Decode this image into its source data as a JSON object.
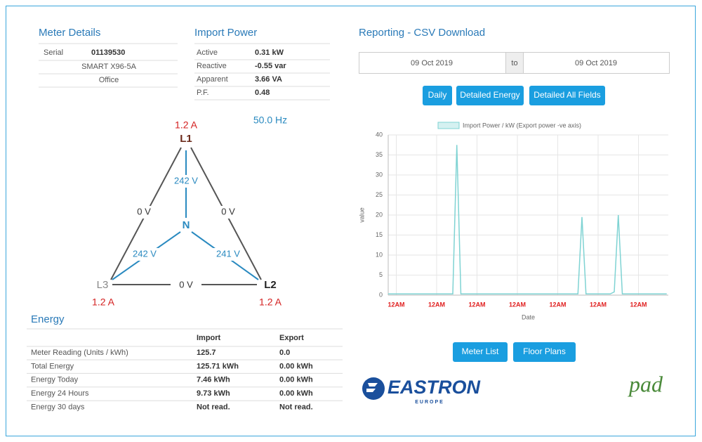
{
  "meter_details": {
    "title": "Meter Details",
    "serial_label": "Serial",
    "serial": "01139530",
    "model": "SMART X96-5A",
    "location": "Office"
  },
  "import_power": {
    "title": "Import Power",
    "rows": [
      [
        "Active",
        "0.31 kW"
      ],
      [
        "Reactive",
        "-0.55 var"
      ],
      [
        "Apparent",
        "3.66 VA"
      ],
      [
        "P.F.",
        "0.48"
      ]
    ]
  },
  "diagram": {
    "frequency": "50.0 Hz",
    "l1": "L1",
    "l2": "L2",
    "l3": "L3",
    "n": "N",
    "l1_current": "1.2 A",
    "l2_current": "1.2 A",
    "l3_current": "1.2 A",
    "n_l1": "242 V",
    "n_l2": "241 V",
    "n_l3": "242 V",
    "l1_l3": "0 V",
    "l1_l2": "0 V",
    "l2_l3": "0 V"
  },
  "energy": {
    "title": "Energy",
    "header": [
      "Import",
      "Export"
    ],
    "rows": [
      [
        "Meter Reading (Units / kWh)",
        "125.7",
        "0.0"
      ],
      [
        "Total Energy",
        "125.71 kWh",
        "0.00 kWh"
      ],
      [
        "Energy Today",
        "7.46 kWh",
        "0.00 kWh"
      ],
      [
        "Energy 24 Hours",
        "9.73 kWh",
        "0.00 kWh"
      ],
      [
        "Energy 30 days",
        "Not read.",
        "Not read."
      ]
    ]
  },
  "reporting": {
    "title": "Reporting - CSV Download",
    "from": "09 Oct 2019",
    "to_label": "to",
    "to": "09 Oct 2019",
    "buttons": [
      "Daily",
      "Detailed Energy",
      "Detailed All Fields"
    ]
  },
  "chart_data": {
    "type": "line",
    "x_label": "Date",
    "y_label": "value",
    "categories": [
      null,
      null,
      "12AM",
      null,
      null,
      null,
      null,
      null,
      null,
      null,
      null,
      null,
      "12AM",
      null,
      null,
      null,
      null,
      null,
      null,
      null,
      null,
      null,
      "12AM",
      null,
      null,
      null,
      null,
      null,
      null,
      null,
      null,
      null,
      "12AM",
      null,
      null,
      null,
      null,
      null,
      null,
      null,
      null,
      null,
      "12AM",
      null,
      null,
      null,
      null,
      null,
      null,
      null,
      null,
      null,
      "12AM",
      null,
      null,
      null,
      null,
      null,
      null,
      null,
      null,
      null,
      "12AM",
      null,
      null,
      null,
      null,
      null,
      null,
      null
    ],
    "series": [
      {
        "name": "Import Power / kW (Export power -ve axis)",
        "color": "#7fd3d3",
        "values": [
          0.3,
          0.3,
          0.3,
          0.3,
          0.3,
          0.3,
          0.3,
          0.3,
          0.3,
          0.3,
          0.3,
          0.3,
          0.3,
          0.3,
          0.3,
          0.3,
          0.3,
          37.5,
          0.3,
          0.3,
          0.3,
          0.3,
          0.3,
          0.3,
          0.3,
          0.3,
          0.3,
          0.3,
          0.3,
          0.3,
          0.3,
          0.3,
          0.3,
          0.3,
          0.3,
          0.3,
          0.3,
          0.3,
          0.3,
          0.3,
          0.3,
          0.3,
          0.3,
          0.3,
          0.3,
          0.3,
          0.3,
          0.3,
          19.5,
          0.3,
          0.3,
          0.3,
          0.3,
          0.3,
          0.3,
          0.3,
          0.8,
          20,
          0.3,
          0.3,
          0.3,
          0.3,
          0.3,
          0.3,
          0.3,
          0.3,
          0.3,
          0.3,
          0.3,
          0.3
        ]
      }
    ],
    "ylim": [
      0,
      40
    ],
    "yticks": [
      0,
      5,
      10,
      15,
      20,
      25,
      30,
      35,
      40
    ],
    "grid": true,
    "legend": "top"
  },
  "nav_buttons": [
    "Meter List",
    "Floor Plans"
  ],
  "logos": {
    "eastron": "EASTRON",
    "eastron_sub": "EUROPE",
    "pad": "pad"
  }
}
